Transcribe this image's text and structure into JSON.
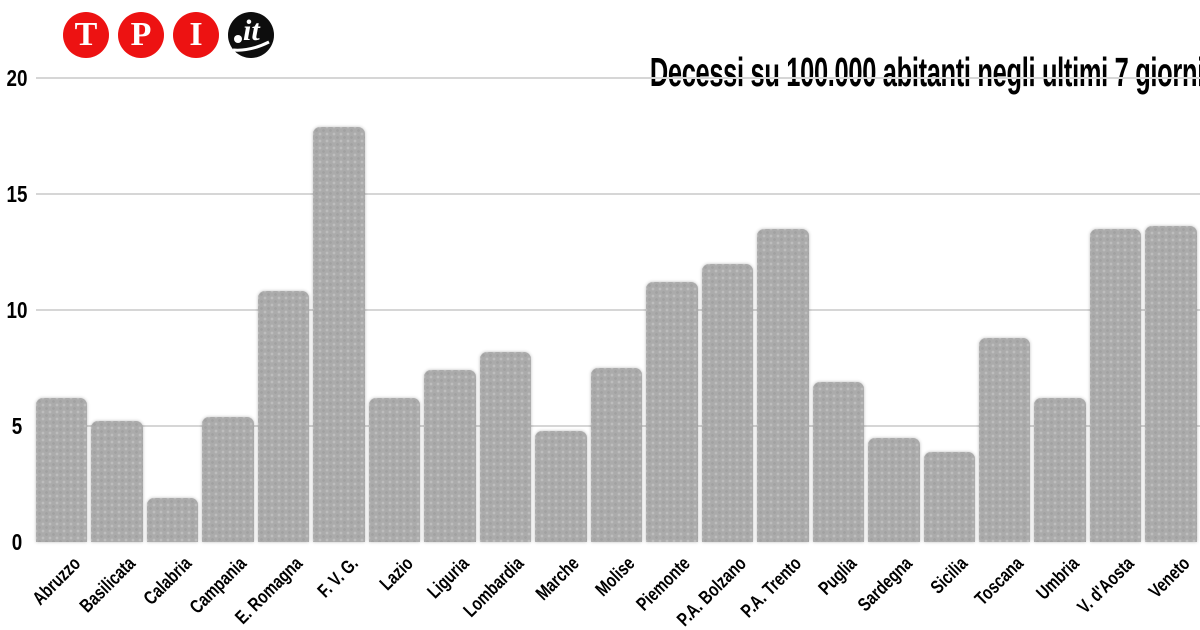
{
  "logo": {
    "circles": [
      "T",
      "P",
      "I"
    ],
    "it_text": "it",
    "red": "#ed1212",
    "black": "#0d0d0d"
  },
  "chart_data": {
    "type": "bar",
    "title": "Decessi su 100.000 abitanti negli ultimi 7 giorni",
    "categories": [
      "Abruzzo",
      "Basilicata",
      "Calabria",
      "Campania",
      "E. Romagna",
      "F. V. G.",
      "Lazio",
      "Liguria",
      "Lombardia",
      "Marche",
      "Molise",
      "Piemonte",
      "P.A. Bolzano",
      "P.A. Trento",
      "Puglia",
      "Sardegna",
      "Sicilia",
      "Toscana",
      "Umbria",
      "V. d'Aosta",
      "Veneto"
    ],
    "values": [
      6.2,
      5.2,
      1.9,
      5.4,
      10.8,
      17.9,
      6.2,
      7.4,
      8.2,
      4.8,
      7.5,
      11.2,
      12,
      13.5,
      6.9,
      4.5,
      3.9,
      8.8,
      6.2,
      13.5,
      13.6
    ],
    "xlabel": "",
    "ylabel": "",
    "ylim": [
      0,
      20
    ],
    "yticks": [
      0,
      5,
      10,
      15,
      20
    ],
    "grid": "horizontal",
    "legend_position": "none",
    "bar_color": "#ababab",
    "grid_color": "#d6d6d6",
    "text_color": "#000000"
  }
}
